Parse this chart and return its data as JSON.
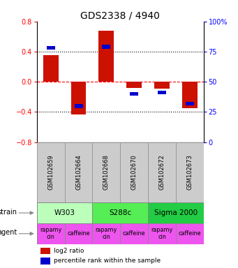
{
  "title": "GDS2338 / 4940",
  "samples": [
    "GSM102659",
    "GSM102664",
    "GSM102668",
    "GSM102670",
    "GSM102672",
    "GSM102673"
  ],
  "log2_ratio": [
    0.35,
    -0.43,
    0.68,
    -0.08,
    -0.09,
    -0.35
  ],
  "percentile": [
    78,
    30,
    79,
    40,
    41,
    32
  ],
  "ylim_left": [
    -0.8,
    0.8
  ],
  "ylim_right": [
    0,
    100
  ],
  "yticks_left": [
    -0.8,
    -0.4,
    0,
    0.4,
    0.8
  ],
  "yticks_right": [
    0,
    25,
    50,
    75,
    100
  ],
  "strains": [
    {
      "label": "W303",
      "span": [
        0,
        2
      ],
      "color": "#bbffbb"
    },
    {
      "label": "S288c",
      "span": [
        2,
        4
      ],
      "color": "#55ee55"
    },
    {
      "label": "Sigma 2000",
      "span": [
        4,
        6
      ],
      "color": "#22cc44"
    }
  ],
  "agents": [
    {
      "label": "rapamycin",
      "span": [
        0,
        1
      ],
      "color": "#ee55ee"
    },
    {
      "label": "caffeine",
      "span": [
        1,
        2
      ],
      "color": "#ee55ee"
    },
    {
      "label": "rapamycin",
      "span": [
        2,
        3
      ],
      "color": "#ee55ee"
    },
    {
      "label": "caffeine",
      "span": [
        3,
        4
      ],
      "color": "#ee55ee"
    },
    {
      "label": "rapamycin",
      "span": [
        4,
        5
      ],
      "color": "#ee55ee"
    },
    {
      "label": "caffeine",
      "span": [
        5,
        6
      ],
      "color": "#ee55ee"
    }
  ],
  "bar_color_red": "#cc1100",
  "bar_color_blue": "#0000cc",
  "bar_width": 0.55,
  "background_color": "#ffffff",
  "legend_red": "log2 ratio",
  "legend_blue": "percentile rank within the sample",
  "sample_fontsize": 6.0,
  "title_fontsize": 10,
  "sample_bg_color": "#cccccc",
  "sample_edge_color": "#999999"
}
